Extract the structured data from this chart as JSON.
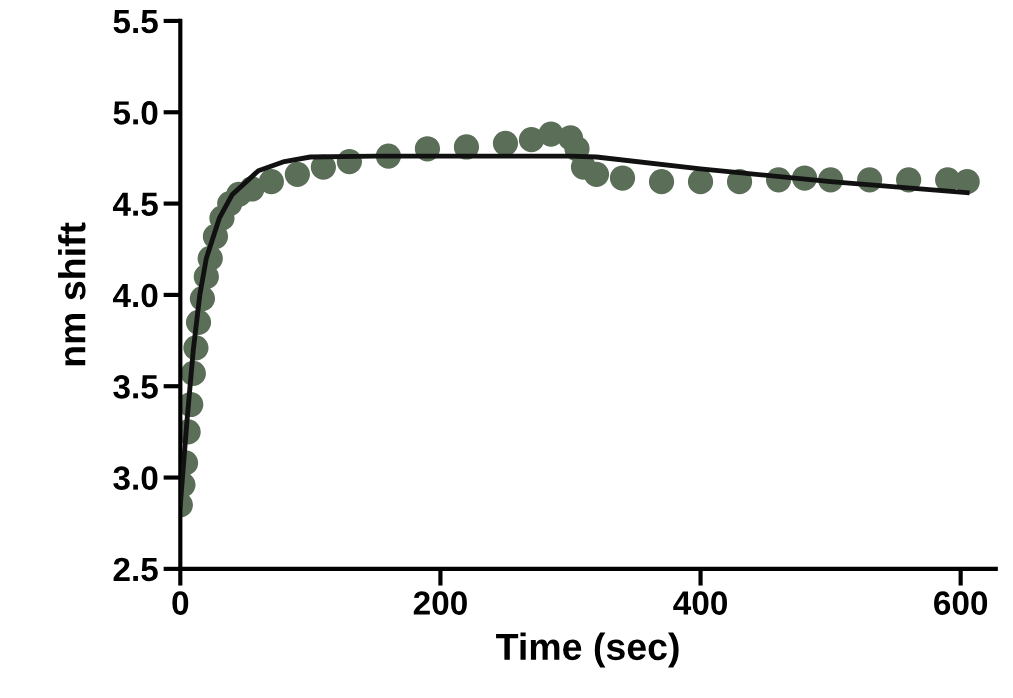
{
  "chart_data": {
    "type": "scatter",
    "xlabel": "Time (sec)",
    "ylabel": "nm shift",
    "xlim": [
      0,
      627
    ],
    "ylim": [
      2.5,
      5.5
    ],
    "xticks": [
      0,
      200,
      400,
      600
    ],
    "yticks": [
      2.5,
      {
        "value": 3,
        "label": "3.0"
      },
      3.5,
      {
        "value": 4,
        "label": "4.0"
      },
      4.5,
      {
        "value": 5,
        "label": "5.0"
      },
      5.5
    ],
    "grid": false,
    "legend": false,
    "series": [
      {
        "color": "#5a6e58",
        "marker": "circle",
        "x": [
          0,
          2,
          4,
          6,
          8,
          10,
          12,
          14,
          17,
          20,
          23,
          27,
          32,
          38,
          45,
          55,
          70,
          90,
          110,
          130,
          160,
          190,
          220,
          250,
          270,
          285,
          300,
          305,
          310,
          320,
          340,
          370,
          400,
          430,
          460,
          480,
          500,
          530,
          560,
          590,
          605
        ],
        "values": [
          2.85,
          2.96,
          3.08,
          3.25,
          3.4,
          3.57,
          3.71,
          3.85,
          3.98,
          4.1,
          4.2,
          4.32,
          4.42,
          4.5,
          4.55,
          4.58,
          4.62,
          4.66,
          4.7,
          4.73,
          4.76,
          4.8,
          4.81,
          4.83,
          4.85,
          4.88,
          4.86,
          4.8,
          4.7,
          4.66,
          4.64,
          4.62,
          4.62,
          4.62,
          4.63,
          4.64,
          4.63,
          4.63,
          4.63,
          4.63,
          4.62
        ]
      },
      {
        "type": "line",
        "color": "#111111",
        "marker": "none",
        "x": [
          0,
          5,
          10,
          15,
          20,
          30,
          40,
          60,
          80,
          100,
          150,
          200,
          250,
          300,
          320,
          400,
          500,
          605
        ],
        "values": [
          2.85,
          3.3,
          3.7,
          4.0,
          4.2,
          4.42,
          4.55,
          4.68,
          4.73,
          4.755,
          4.76,
          4.76,
          4.76,
          4.76,
          4.755,
          4.69,
          4.62,
          4.56
        ]
      }
    ]
  }
}
